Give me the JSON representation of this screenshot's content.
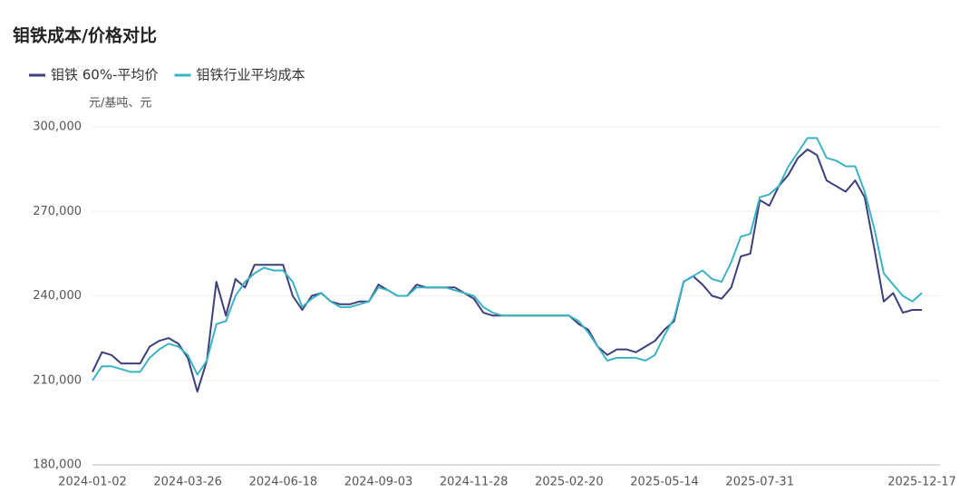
{
  "chart_data": {
    "type": "line",
    "title": "钼铁成本/价格对比",
    "y_label": "元/基吨、元",
    "legend": "top-left",
    "grid": true,
    "categories": [
      "2024-01-02",
      null,
      null,
      null,
      null,
      null,
      null,
      null,
      null,
      null,
      "2024-03-26",
      null,
      null,
      null,
      null,
      null,
      null,
      null,
      null,
      null,
      "2024-06-18",
      null,
      null,
      null,
      null,
      null,
      null,
      null,
      null,
      null,
      "2024-09-03",
      null,
      null,
      null,
      null,
      null,
      null,
      null,
      null,
      null,
      "2024-11-28",
      null,
      null,
      null,
      null,
      null,
      null,
      null,
      null,
      null,
      "2025-02-20",
      null,
      null,
      null,
      null,
      null,
      null,
      null,
      null,
      null,
      "2025-05-14",
      null,
      null,
      null,
      null,
      null,
      null,
      null,
      null,
      null,
      "2025-07-31",
      null,
      null,
      null,
      null,
      null,
      null,
      null,
      null,
      null,
      null,
      null,
      null,
      null,
      null,
      null,
      null,
      "2025-12-17"
    ],
    "ylim": [
      180000,
      300000
    ],
    "yticks": [
      {
        "value": 180000,
        "label": "180,000"
      },
      {
        "value": 210000,
        "label": "210,000"
      },
      {
        "value": 240000,
        "label": "240,000"
      },
      {
        "value": 270000,
        "label": "270,000"
      },
      {
        "value": 300000,
        "label": "300,000"
      }
    ],
    "series": [
      {
        "name": "钼铁 60%-平均价",
        "color": "#3c3f7a",
        "values": [
          213000,
          220000,
          219000,
          216000,
          216000,
          216000,
          222000,
          224000,
          225000,
          223000,
          218000,
          206000,
          217000,
          245000,
          233000,
          246000,
          243000,
          251000,
          251000,
          251000,
          251000,
          240000,
          235000,
          240000,
          241000,
          238000,
          237000,
          237000,
          238000,
          238000,
          244000,
          242000,
          240000,
          240000,
          244000,
          243000,
          243000,
          243000,
          243000,
          241000,
          239000,
          234000,
          233000,
          233000,
          233000,
          233000,
          233000,
          233000,
          233000,
          233000,
          233000,
          230000,
          228000,
          222000,
          219000,
          221000,
          221000,
          220000,
          222000,
          224000,
          228000,
          231000,
          245000,
          247000,
          244000,
          240000,
          239000,
          243000,
          254000,
          255000,
          274000,
          272000,
          279000,
          283000,
          289000,
          292000,
          290000,
          281000,
          279000,
          277000,
          281000,
          275000,
          257000,
          238000,
          241000,
          234000,
          235000,
          235000
        ]
      },
      {
        "name": "钼铁行业平均成本",
        "color": "#3bb3c3",
        "values": [
          210000,
          215000,
          215000,
          214000,
          213000,
          213000,
          218000,
          221000,
          223000,
          222000,
          219000,
          212000,
          217000,
          230000,
          231000,
          240000,
          245000,
          248000,
          250000,
          249000,
          249000,
          245000,
          236000,
          239000,
          241000,
          238000,
          236000,
          236000,
          237000,
          238000,
          243000,
          242000,
          240000,
          240000,
          243000,
          243000,
          243000,
          243000,
          242000,
          241000,
          240000,
          236000,
          234000,
          233000,
          233000,
          233000,
          233000,
          233000,
          233000,
          233000,
          233000,
          231000,
          227000,
          222000,
          217000,
          218000,
          218000,
          218000,
          217000,
          219000,
          226000,
          232000,
          245000,
          247000,
          249000,
          246000,
          245000,
          252000,
          261000,
          262000,
          275000,
          276000,
          279000,
          286000,
          291000,
          296000,
          296000,
          289000,
          288000,
          286000,
          286000,
          277000,
          264000,
          248000,
          244000,
          240000,
          238000,
          241000
        ]
      }
    ]
  }
}
